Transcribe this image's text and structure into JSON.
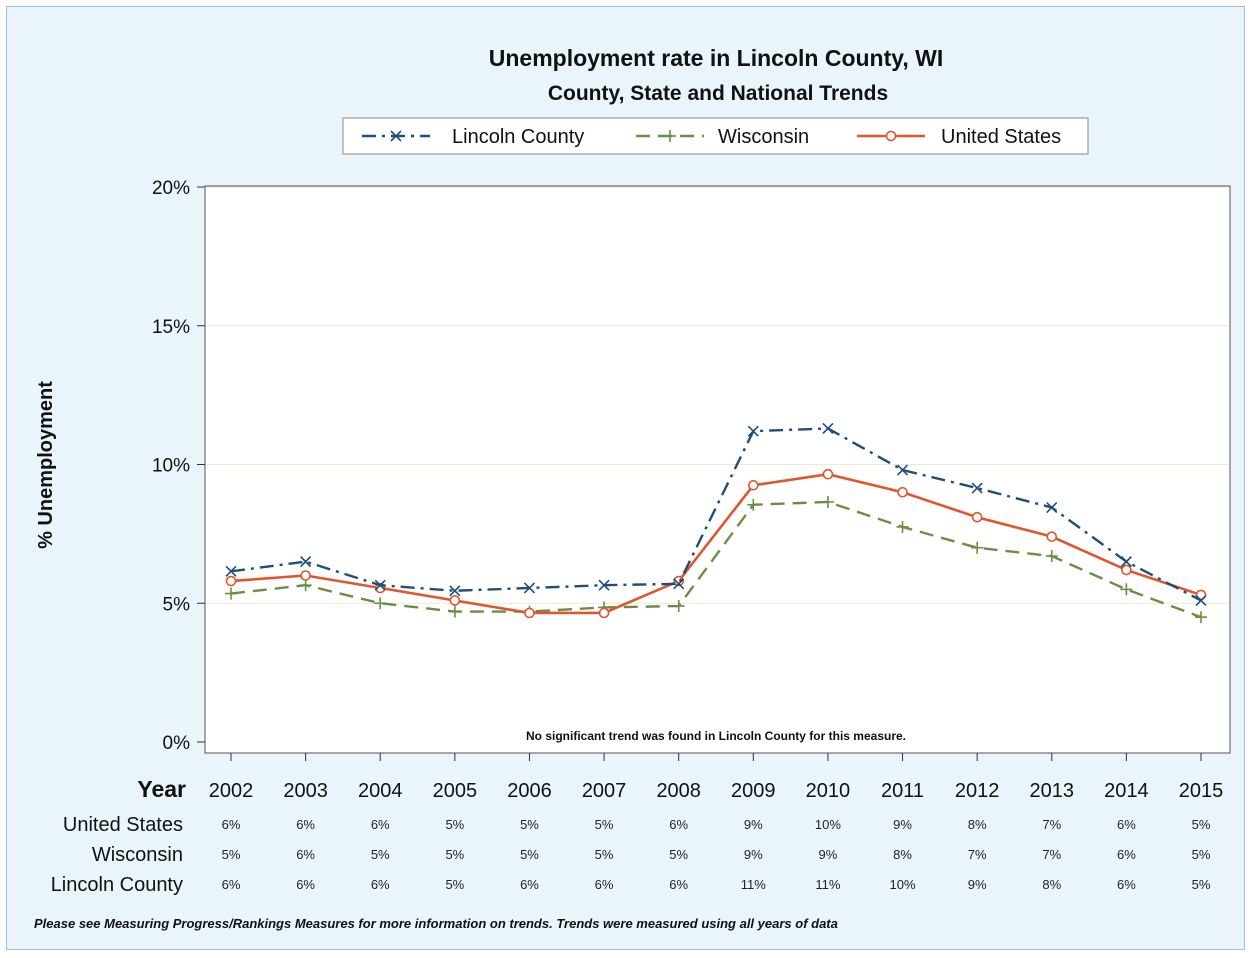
{
  "chart_data": {
    "type": "line",
    "title": "Unemployment rate in Lincoln County, WI",
    "subtitle": "County, State and National Trends",
    "ylabel": "% Unemployment",
    "xlabel": "Year",
    "ylim": [
      0,
      20
    ],
    "yticks": [
      "0%",
      "5%",
      "10%",
      "15%",
      "20%"
    ],
    "ytick_values": [
      0,
      5,
      10,
      15,
      20
    ],
    "grid": true,
    "legend_position": "top",
    "x": [
      "2002",
      "2003",
      "2004",
      "2005",
      "2006",
      "2007",
      "2008",
      "2009",
      "2010",
      "2011",
      "2012",
      "2013",
      "2014",
      "2015"
    ],
    "series": [
      {
        "name": "Lincoln County",
        "color": "#1f4e79",
        "style": "dash-dot",
        "marker": "x",
        "values": [
          6.15,
          6.5,
          5.65,
          5.45,
          5.55,
          5.65,
          5.7,
          11.2,
          11.3,
          9.8,
          9.15,
          8.45,
          6.5,
          5.1
        ]
      },
      {
        "name": "Wisconsin",
        "color": "#6b8e45",
        "style": "dash",
        "marker": "+",
        "values": [
          5.35,
          5.65,
          5.0,
          4.7,
          4.7,
          4.85,
          4.9,
          8.55,
          8.65,
          7.75,
          7.0,
          6.7,
          5.5,
          4.5
        ]
      },
      {
        "name": "United States",
        "color": "#e0562d",
        "style": "solid",
        "marker": "o",
        "values": [
          5.8,
          6.0,
          5.55,
          5.1,
          4.65,
          4.65,
          5.8,
          9.25,
          9.65,
          9.0,
          8.1,
          7.4,
          6.2,
          5.3
        ]
      }
    ],
    "note": "No significant trend was found in Lincoln County for this measure.",
    "table": {
      "header": "Year",
      "rows": [
        {
          "label": "United States",
          "values": [
            "6%",
            "6%",
            "6%",
            "5%",
            "5%",
            "5%",
            "6%",
            "9%",
            "10%",
            "9%",
            "8%",
            "7%",
            "6%",
            "5%"
          ]
        },
        {
          "label": "Wisconsin",
          "values": [
            "5%",
            "6%",
            "5%",
            "5%",
            "5%",
            "5%",
            "5%",
            "9%",
            "9%",
            "8%",
            "7%",
            "7%",
            "6%",
            "5%"
          ]
        },
        {
          "label": "Lincoln County",
          "values": [
            "6%",
            "6%",
            "6%",
            "5%",
            "6%",
            "6%",
            "6%",
            "11%",
            "11%",
            "10%",
            "9%",
            "8%",
            "6%",
            "5%"
          ]
        }
      ]
    },
    "footnote": "Please see Measuring Progress/Rankings Measures for more information on trends. Trends were measured using all years of data"
  }
}
